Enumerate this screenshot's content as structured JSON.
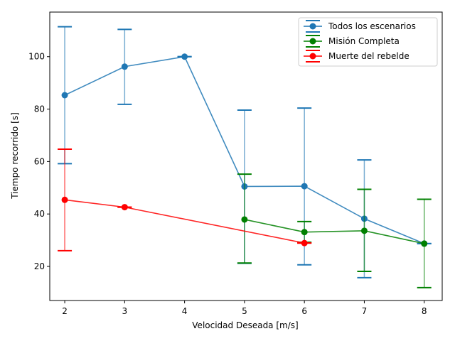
{
  "chart_data": {
    "type": "line",
    "title": "",
    "xlabel": "Velocidad Deseada [m/s]",
    "ylabel": "Tiempo recorrido [s]",
    "xlim": [
      1.75,
      8.3
    ],
    "ylim": [
      7,
      117
    ],
    "xticks": [
      2,
      3,
      4,
      5,
      6,
      7,
      8
    ],
    "yticks": [
      20,
      40,
      60,
      80,
      100
    ],
    "grid": false,
    "legend_position": "top-right",
    "series": [
      {
        "name": "Todos los escenarios",
        "color": "#1f77b4",
        "points": [
          {
            "x": 2,
            "y": 85.3,
            "lo": 59.2,
            "hi": 111.4
          },
          {
            "x": 3,
            "y": 96.2,
            "lo": 81.8,
            "hi": 110.4
          },
          {
            "x": 4,
            "y": 100.0,
            "lo": 100.0,
            "hi": 100.0
          },
          {
            "x": 5,
            "y": 50.5,
            "lo": 21.2,
            "hi": 79.6
          },
          {
            "x": 6,
            "y": 50.6,
            "lo": 20.6,
            "hi": 80.4
          },
          {
            "x": 7,
            "y": 38.2,
            "lo": 15.7,
            "hi": 60.6
          },
          {
            "x": 8,
            "y": 28.7,
            "lo": 28.7,
            "hi": 28.7
          }
        ]
      },
      {
        "name": "Misión Completa",
        "color": "#008000",
        "points": [
          {
            "x": 5,
            "y": 37.9,
            "lo": 21.3,
            "hi": 55.2
          },
          {
            "x": 6,
            "y": 33.1,
            "lo": 29.2,
            "hi": 37.1
          },
          {
            "x": 7,
            "y": 33.6,
            "lo": 18.1,
            "hi": 49.4
          },
          {
            "x": 8,
            "y": 28.7,
            "lo": 11.9,
            "hi": 45.6
          }
        ]
      },
      {
        "name": "Muerte del rebelde",
        "color": "#ff0000",
        "points": [
          {
            "x": 2,
            "y": 45.4,
            "lo": 26.0,
            "hi": 64.7
          },
          {
            "x": 3,
            "y": 42.6,
            "lo": 42.6,
            "hi": 42.6
          },
          {
            "x": 6,
            "y": 28.9,
            "lo": 28.9,
            "hi": 28.9
          }
        ]
      }
    ]
  }
}
